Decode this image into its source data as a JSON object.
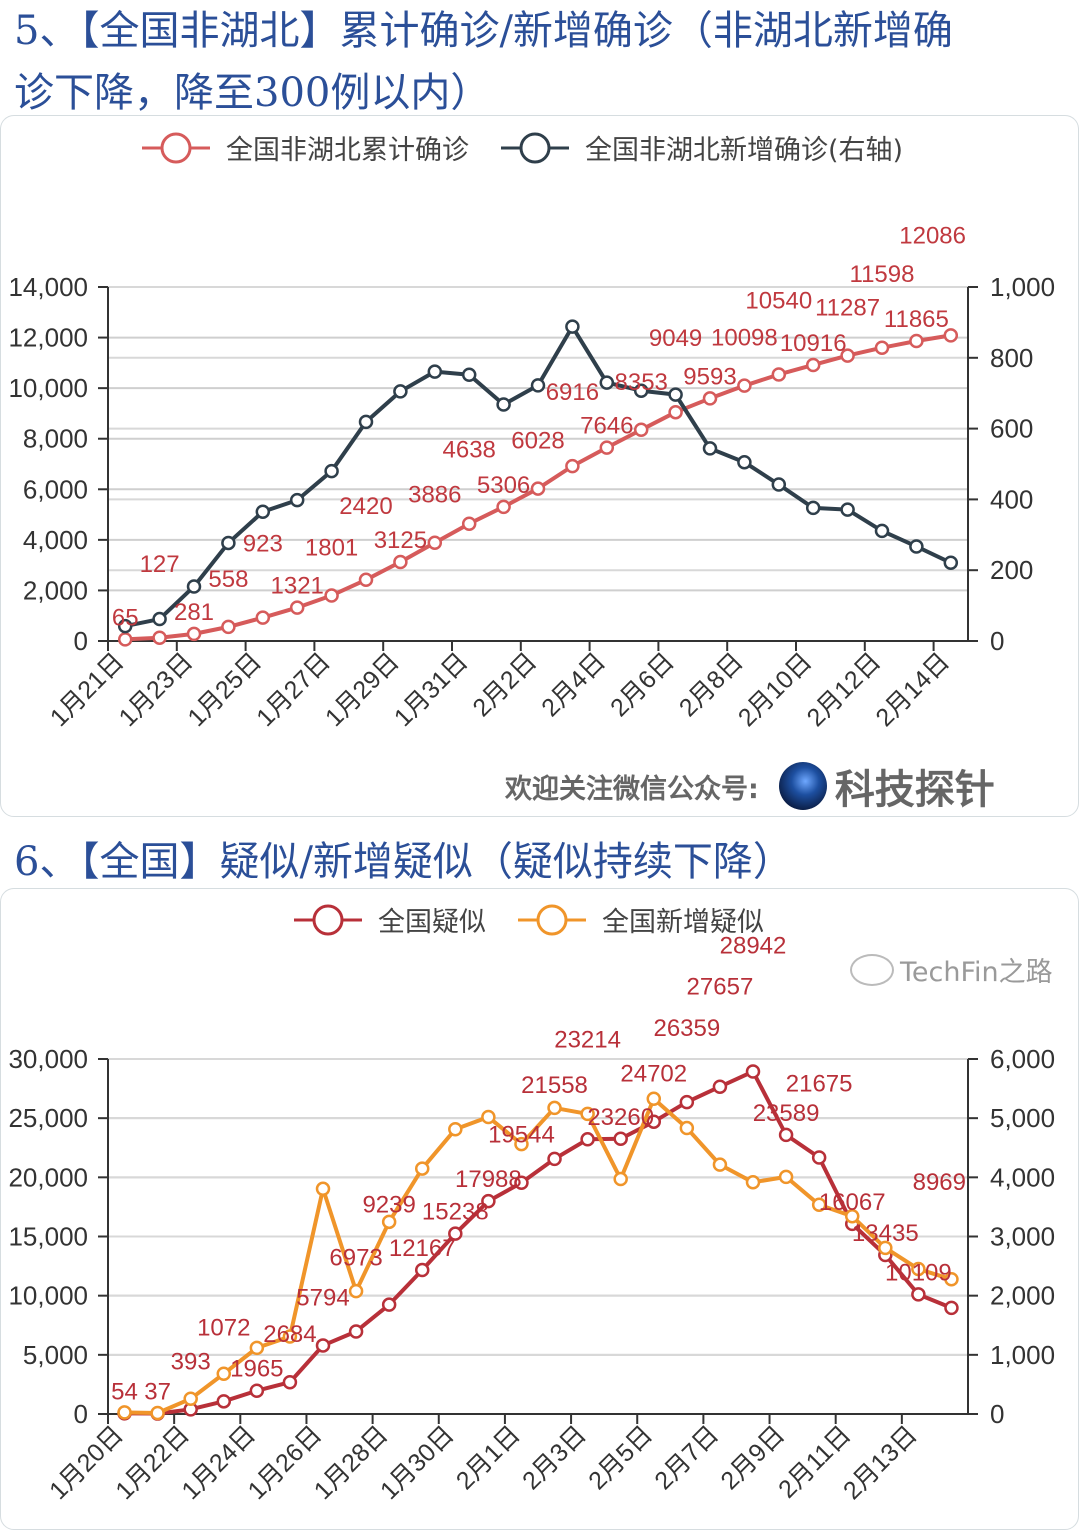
{
  "section5": {
    "title_line1": "5、【全国非湖北】累计确诊/新增确诊（非湖北新增确",
    "title_line2": "诊下降，降至300例以内）",
    "footer_lead": "欢迎关注微信公众号:",
    "footer_brand": "科技探针"
  },
  "section6": {
    "title": "6、【全国】疑似/新增疑似（疑似持续下降）",
    "watermark": "TechFin之路"
  },
  "chart_data": [
    {
      "type": "line",
      "title": "【全国非湖北】累计确诊/新增确诊",
      "categories": [
        "1月21日",
        "1月22日",
        "1月23日",
        "1月24日",
        "1月25日",
        "1月26日",
        "1月27日",
        "1月28日",
        "1月29日",
        "1月30日",
        "1月31日",
        "2月1日",
        "2月2日",
        "2月3日",
        "2月4日",
        "2月5日",
        "2月6日",
        "2月7日",
        "2月8日",
        "2月9日",
        "2月10日",
        "2月11日",
        "2月12日",
        "2月13日",
        "2月14日"
      ],
      "series": [
        {
          "name": "全国非湖北累计确诊",
          "axis": "left",
          "color": "#d65b5b",
          "label_color": "#c0393f",
          "show_labels": true,
          "values": [
            65,
            127,
            281,
            558,
            923,
            1321,
            1801,
            2420,
            3125,
            3886,
            4638,
            5306,
            6028,
            6916,
            7646,
            8353,
            9049,
            9593,
            10098,
            10540,
            10916,
            11287,
            11598,
            11865,
            12086
          ]
        },
        {
          "name": "全国非湖北新增确诊(右轴)",
          "axis": "right",
          "color": "#2f3f4b",
          "show_labels": false,
          "values": [
            42,
            62,
            154,
            277,
            365,
            398,
            480,
            619,
            705,
            761,
            752,
            668,
            722,
            888,
            730,
            707,
            696,
            544,
            505,
            442,
            376,
            371,
            311,
            267,
            221
          ]
        }
      ],
      "left_axis": {
        "min": 0,
        "max": 14000,
        "step": 2000,
        "ticks": [
          "0",
          "2,000",
          "4,000",
          "6,000",
          "8,000",
          "10,000",
          "12,000",
          "14,000"
        ]
      },
      "right_axis": {
        "min": 0,
        "max": 1000,
        "step": 200,
        "ticks": [
          "0",
          "200",
          "400",
          "600",
          "800",
          "1,000"
        ]
      },
      "x_tick_every": 2,
      "grid": true,
      "legend": "top-center"
    },
    {
      "type": "line",
      "title": "【全国】疑似/新增疑似",
      "categories": [
        "1月20日",
        "1月21日",
        "1月22日",
        "1月23日",
        "1月24日",
        "1月25日",
        "1月26日",
        "1月27日",
        "1月28日",
        "1月29日",
        "1月30日",
        "1月31日",
        "2月1日",
        "2月2日",
        "2月3日",
        "2月4日",
        "2月5日",
        "2月6日",
        "2月7日",
        "2月8日",
        "2月9日",
        "2月10日",
        "2月11日",
        "2月12日",
        "2月13日",
        "2月14日"
      ],
      "series": [
        {
          "name": "全国疑似",
          "axis": "left",
          "color": "#b83039",
          "label_color": "#b83039",
          "show_labels": true,
          "values": [
            54,
            37,
            393,
            1072,
            1965,
            2684,
            5794,
            6973,
            9239,
            12167,
            15238,
            17988,
            19544,
            21558,
            23214,
            23260,
            24702,
            26359,
            27657,
            28942,
            23589,
            21675,
            16067,
            13435,
            10109,
            8969
          ]
        },
        {
          "name": "全国新增疑似",
          "axis": "right",
          "color": "#f0952a",
          "show_labels": false,
          "values": [
            27,
            17,
            257,
            680,
            1118,
            1309,
            3806,
            2077,
            3248,
            4148,
            4812,
            5019,
            4562,
            5173,
            5072,
            3971,
            5328,
            4833,
            4214,
            3916,
            4008,
            3536,
            3342,
            2807,
            2450,
            2277
          ]
        }
      ],
      "left_axis": {
        "min": 0,
        "max": 30000,
        "step": 5000,
        "ticks": [
          "0",
          "5,000",
          "10,000",
          "15,000",
          "20,000",
          "25,000",
          "30,000"
        ]
      },
      "right_axis": {
        "min": 0,
        "max": 6000,
        "step": 1000,
        "ticks": [
          "0",
          "1,000",
          "2,000",
          "3,000",
          "4,000",
          "5,000",
          "6,000"
        ]
      },
      "x_tick_every": 2,
      "grid": true,
      "legend": "top-center"
    }
  ]
}
